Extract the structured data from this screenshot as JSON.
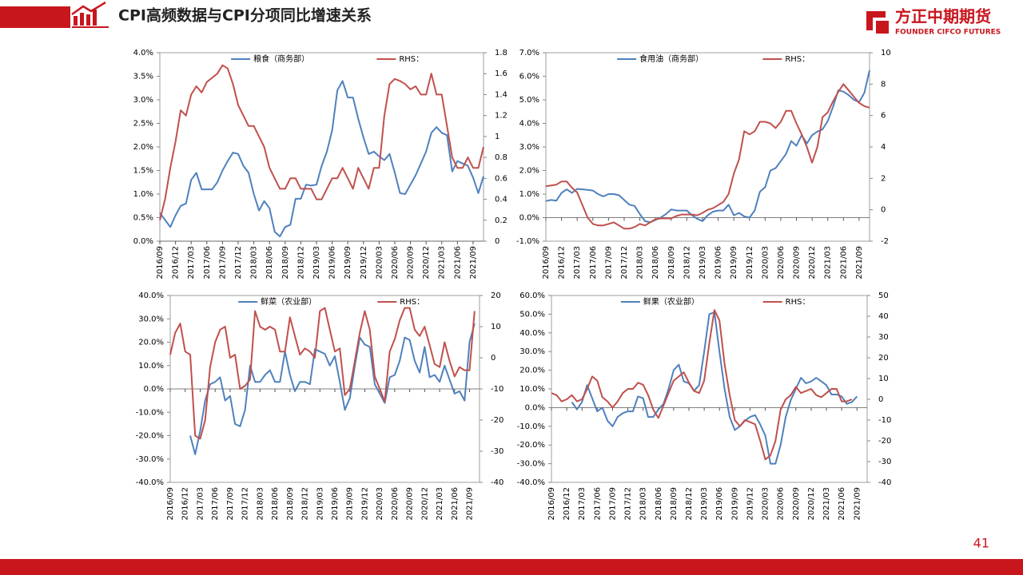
{
  "header": {
    "title": "CPI高频数据与CPI分项同比增速关系",
    "logo": "方正中期期货",
    "logo_en": "FOUNDER CIFCO FUTURES"
  },
  "page_number": "41",
  "chart_data": [
    {
      "type": "line",
      "categories": [
        "2016/09",
        null,
        null,
        "2016/12",
        null,
        null,
        "2017/03",
        null,
        null,
        "2017/06",
        null,
        null,
        "2017/09",
        null,
        null,
        "2017/12",
        null,
        null,
        "2018/03",
        null,
        null,
        "2018/06",
        null,
        null,
        "2018/09",
        null,
        null,
        "2018/12",
        null,
        null,
        "2019/03",
        null,
        null,
        "2019/06",
        null,
        null,
        "2019/09",
        null,
        null,
        "2019/12",
        null,
        null,
        "2020/03",
        null,
        null,
        "2020/06",
        null,
        null,
        "2020/09",
        null,
        null,
        "2020/12",
        null,
        null,
        "2021/03",
        null,
        null,
        "2021/06",
        null,
        null,
        "2021/09",
        null,
        null
      ],
      "series": [
        {
          "name": "粮食（商务部）",
          "color": "#4f81bd",
          "values": [
            0.6,
            0.45,
            0.3,
            0.55,
            0.75,
            0.8,
            1.3,
            1.45,
            1.1,
            1.1,
            1.1,
            1.25,
            1.5,
            1.7,
            1.88,
            1.85,
            1.6,
            1.45,
            1.0,
            0.65,
            0.85,
            0.7,
            0.2,
            0.1,
            0.3,
            0.35,
            0.9,
            0.9,
            1.2,
            1.18,
            1.2,
            1.6,
            1.9,
            2.35,
            3.2,
            3.4,
            3.05,
            3.05,
            2.6,
            2.2,
            1.85,
            1.9,
            1.8,
            1.72,
            1.85,
            1.45,
            1.02,
            1.0,
            1.2,
            1.4,
            1.65,
            1.9,
            2.3,
            2.42,
            2.3,
            2.25,
            1.48,
            1.7,
            1.65,
            1.6,
            1.35,
            1.02,
            1.38
          ]
        },
        {
          "name": "RHS：",
          "color": "#c0504d",
          "axis": "y2",
          "values": [
            0.2,
            0.4,
            0.7,
            0.95,
            1.25,
            1.2,
            1.4,
            1.48,
            1.42,
            1.52,
            1.56,
            1.6,
            1.68,
            1.65,
            1.5,
            1.3,
            1.2,
            1.1,
            1.1,
            1.0,
            0.9,
            0.7,
            0.6,
            0.5,
            0.5,
            0.6,
            0.6,
            0.5,
            0.5,
            0.5,
            0.4,
            0.4,
            0.5,
            0.6,
            0.6,
            0.7,
            0.6,
            0.5,
            0.7,
            0.6,
            0.5,
            0.7,
            0.7,
            1.2,
            1.5,
            1.55,
            1.53,
            1.5,
            1.45,
            1.48,
            1.4,
            1.4,
            1.6,
            1.4,
            1.4,
            1.1,
            0.8,
            0.7,
            0.7,
            0.8,
            0.7,
            0.7,
            0.9
          ]
        }
      ],
      "ylim": [
        0,
        4
      ],
      "yticks": [
        {
          "value": 0,
          "label": "0.0%"
        },
        {
          "value": 0.5,
          "label": "0.5%"
        },
        {
          "value": 1,
          "label": "1.0%"
        },
        {
          "value": 1.5,
          "label": "1.5%"
        },
        {
          "value": 2,
          "label": "2.0%"
        },
        {
          "value": 2.5,
          "label": "2.5%"
        },
        {
          "value": 3,
          "label": "3.0%"
        },
        {
          "value": 3.5,
          "label": "3.5%"
        },
        {
          "value": 4,
          "label": "4.0%"
        }
      ],
      "y2lim": [
        0,
        1.8
      ],
      "y2ticks": [
        0,
        0.2,
        0.4,
        0.6,
        0.8,
        1,
        1.2,
        1.4,
        1.6,
        1.8
      ]
    },
    {
      "type": "line",
      "categories": [
        "2016/09",
        null,
        null,
        "2016/12",
        null,
        null,
        "2017/03",
        null,
        null,
        "2017/06",
        null,
        null,
        "2017/09",
        null,
        null,
        "2017/12",
        null,
        null,
        "2018/03",
        null,
        null,
        "2018/06",
        null,
        null,
        "2018/09",
        null,
        null,
        "2018/12",
        null,
        null,
        "2019/03",
        null,
        null,
        "2019/06",
        null,
        null,
        "2019/09",
        null,
        null,
        "2019/12",
        null,
        null,
        "2020/03",
        null,
        null,
        "2020/06",
        null,
        null,
        "2020/09",
        null,
        null,
        "2020/12",
        null,
        null,
        "2021/03",
        null,
        null,
        "2021/06",
        null,
        null,
        "2021/09",
        null,
        null
      ],
      "series": [
        {
          "name": "食用油（商务部）",
          "color": "#4f81bd",
          "values": [
            0.7,
            0.75,
            0.72,
            1.05,
            1.2,
            1.05,
            1.22,
            1.2,
            1.18,
            1.15,
            1.0,
            0.9,
            1.0,
            1.0,
            0.95,
            0.75,
            0.55,
            0.5,
            0.15,
            -0.15,
            -0.2,
            -0.1,
            0.0,
            0.15,
            0.35,
            0.3,
            0.3,
            0.3,
            0.1,
            -0.05,
            -0.15,
            0.1,
            0.25,
            0.3,
            0.3,
            0.55,
            0.1,
            0.2,
            0.05,
            0.0,
            0.3,
            1.1,
            1.3,
            2.0,
            2.1,
            2.4,
            2.7,
            3.25,
            3.05,
            3.5,
            3.15,
            3.5,
            3.65,
            3.75,
            4.1,
            4.7,
            5.4,
            5.35,
            5.2,
            5.0,
            4.9,
            5.3,
            6.25
          ]
        },
        {
          "name": "RHS：",
          "color": "#c0504d",
          "axis": "y2",
          "values": [
            1.5,
            1.55,
            1.6,
            1.8,
            1.8,
            1.4,
            1.1,
            0.3,
            -0.5,
            -0.9,
            -1.0,
            -1.0,
            -0.9,
            -0.8,
            -1.0,
            -1.2,
            -1.2,
            -1.1,
            -0.9,
            -1.0,
            -0.8,
            -0.6,
            -0.55,
            -0.55,
            -0.55,
            -0.4,
            -0.3,
            -0.3,
            -0.3,
            -0.35,
            -0.2,
            0.0,
            0.1,
            0.3,
            0.5,
            1.0,
            2.3,
            3.2,
            5.0,
            4.8,
            5.0,
            5.6,
            5.6,
            5.5,
            5.2,
            5.6,
            6.3,
            6.3,
            5.5,
            4.8,
            4.0,
            3.0,
            4.0,
            5.9,
            6.2,
            6.9,
            7.5,
            8.0,
            7.6,
            7.2,
            6.8,
            6.6,
            6.5
          ]
        }
      ],
      "ylim": [
        -1,
        7
      ],
      "yticks": [
        {
          "value": -1,
          "label": "-1.0%"
        },
        {
          "value": 0,
          "label": "0.0%"
        },
        {
          "value": 1,
          "label": "1.0%"
        },
        {
          "value": 2,
          "label": "2.0%"
        },
        {
          "value": 3,
          "label": "3.0%"
        },
        {
          "value": 4,
          "label": "4.0%"
        },
        {
          "value": 5,
          "label": "5.0%"
        },
        {
          "value": 6,
          "label": "6.0%"
        },
        {
          "value": 7,
          "label": "7.0%"
        }
      ],
      "y2lim": [
        -2,
        10
      ],
      "y2ticks": [
        -2,
        0,
        2,
        4,
        6,
        8,
        10
      ]
    },
    {
      "type": "line",
      "categories": [
        "2016/09",
        null,
        null,
        "2016/12",
        null,
        null,
        "2017/03",
        null,
        null,
        "2017/06",
        null,
        null,
        "2017/09",
        null,
        null,
        "2017/12",
        null,
        null,
        "2018/03",
        null,
        null,
        "2018/06",
        null,
        null,
        "2018/09",
        null,
        null,
        "2018/12",
        null,
        null,
        "2019/03",
        null,
        null,
        "2019/06",
        null,
        null,
        "2019/09",
        null,
        null,
        "2019/12",
        null,
        null,
        "2020/03",
        null,
        null,
        "2020/06",
        null,
        null,
        "2020/09",
        null,
        null,
        "2020/12",
        null,
        null,
        "2021/03",
        null,
        null,
        "2021/06",
        null,
        null,
        "2021/09",
        null,
        null
      ],
      "series": [
        {
          "name": "鲜菜（农业部）",
          "color": "#4f81bd",
          "values": [
            null,
            null,
            null,
            null,
            -20,
            -28,
            -18,
            -5,
            2,
            3,
            5,
            -5,
            -3,
            -15,
            -16,
            -9,
            10,
            3,
            3,
            6,
            8,
            3,
            3,
            16,
            6,
            -1,
            3,
            3,
            2,
            17,
            16,
            15,
            10,
            14,
            3,
            -9,
            -4,
            10,
            22,
            19,
            18,
            2,
            -2,
            -6,
            5,
            6,
            12,
            22,
            21,
            12,
            7,
            18,
            5,
            6,
            3,
            10,
            4,
            -2,
            -1,
            -5,
            20,
            28,
            null
          ]
        },
        {
          "name": "RHS：",
          "color": "#c0504d",
          "axis": "y2",
          "values": [
            1,
            8,
            11,
            2,
            1,
            -25,
            -26,
            -20,
            -3,
            5,
            9,
            10,
            0,
            1,
            -10,
            -9,
            -7,
            15,
            10,
            9,
            10,
            9,
            2,
            2,
            13,
            7,
            1,
            3,
            2,
            0,
            15,
            16,
            9,
            2,
            3,
            -12,
            -10,
            -1,
            8,
            15,
            9,
            -6,
            -10,
            -14,
            2,
            6,
            12,
            16,
            16,
            9,
            7,
            10,
            4,
            -2,
            -3,
            5,
            -1,
            -6,
            -3,
            -4,
            -4,
            15,
            null
          ]
        }
      ],
      "ylim": [
        -40,
        40
      ],
      "yticks": [
        {
          "value": -40,
          "label": "-40.0%"
        },
        {
          "value": -30,
          "label": "-30.0%"
        },
        {
          "value": -20,
          "label": "-20.0%"
        },
        {
          "value": -10,
          "label": "-10.0%"
        },
        {
          "value": 0,
          "label": "0.0%"
        },
        {
          "value": 10,
          "label": "10.0%"
        },
        {
          "value": 20,
          "label": "20.0%"
        },
        {
          "value": 30,
          "label": "30.0%"
        },
        {
          "value": 40,
          "label": "40.0%"
        }
      ],
      "y2lim": [
        -40,
        20
      ],
      "y2ticks": [
        -40,
        -30,
        -20,
        -10,
        0,
        10,
        20
      ]
    },
    {
      "type": "line",
      "categories": [
        "2016/09",
        null,
        null,
        "2016/12",
        null,
        null,
        "2017/03",
        null,
        null,
        "2017/06",
        null,
        null,
        "2017/09",
        null,
        null,
        "2017/12",
        null,
        null,
        "2018/03",
        null,
        null,
        "2018/06",
        null,
        null,
        "2018/09",
        null,
        null,
        "2018/12",
        null,
        null,
        "2019/03",
        null,
        null,
        "2019/06",
        null,
        null,
        "2019/09",
        null,
        null,
        "2019/12",
        null,
        null,
        "2020/03",
        null,
        null,
        "2020/06",
        null,
        null,
        "2020/09",
        null,
        null,
        "2020/12",
        null,
        null,
        "2021/03",
        null,
        null,
        "2021/06",
        null,
        null,
        "2021/09",
        null,
        null
      ],
      "series": [
        {
          "name": "鲜果（农业部）",
          "color": "#4f81bd",
          "values": [
            null,
            null,
            null,
            null,
            3,
            -1,
            3,
            12,
            5,
            -2,
            0,
            -7,
            -10,
            -5,
            -3,
            -2,
            -2,
            6,
            5,
            -5,
            -5,
            -1,
            2,
            10,
            20,
            23,
            14,
            13,
            9,
            12,
            30,
            50,
            51,
            30,
            10,
            -5,
            -12,
            -10,
            -7,
            -5,
            -4,
            -9,
            -15,
            -30,
            -30,
            -20,
            -5,
            4,
            10,
            16,
            13,
            14,
            16,
            14,
            12,
            7,
            7,
            6,
            2,
            3,
            6,
            null,
            null
          ]
        },
        {
          "name": "RHS：",
          "color": "#c0504d",
          "axis": "y2",
          "values": [
            3,
            2,
            -1,
            0,
            2,
            -1,
            0,
            5,
            11,
            9,
            1,
            -1,
            -4,
            -1,
            3,
            5,
            5,
            8,
            7,
            2,
            -5,
            -9,
            -3,
            3,
            9,
            11,
            13,
            8,
            4,
            3,
            9,
            27,
            43,
            38,
            17,
            2,
            -10,
            -13,
            -10,
            -11,
            -12,
            -20,
            -29,
            -27,
            -20,
            -5,
            0,
            2,
            6,
            3,
            4,
            5,
            2,
            1,
            3,
            5,
            5,
            -1,
            -1,
            0,
            null,
            null,
            null
          ]
        }
      ],
      "ylim": [
        -40,
        60
      ],
      "yticks": [
        {
          "value": -40,
          "label": "-40.0%"
        },
        {
          "value": -30,
          "label": "-30.0%"
        },
        {
          "value": -20,
          "label": "-20.0%"
        },
        {
          "value": -10,
          "label": "-10.0%"
        },
        {
          "value": 0,
          "label": "0.0%"
        },
        {
          "value": 10,
          "label": "10.0%"
        },
        {
          "value": 20,
          "label": "20.0%"
        },
        {
          "value": 30,
          "label": "30.0%"
        },
        {
          "value": 40,
          "label": "40.0%"
        },
        {
          "value": 50,
          "label": "50.0%"
        },
        {
          "value": 60,
          "label": "60.0%"
        }
      ],
      "y2lim": [
        -40,
        50
      ],
      "y2ticks": [
        -40,
        -30,
        -20,
        -10,
        0,
        10,
        20,
        30,
        40,
        50
      ]
    }
  ]
}
